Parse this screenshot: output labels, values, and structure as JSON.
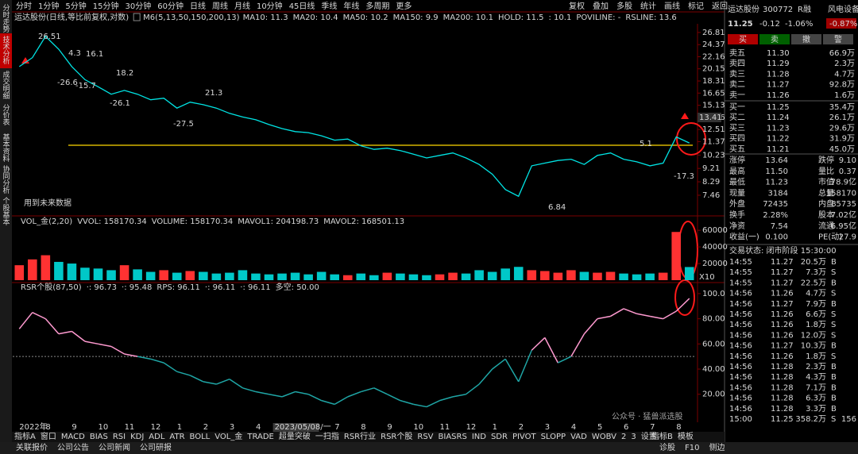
{
  "side_tabs": [
    "分时走势",
    "技术分析",
    "成交明细",
    "分价表",
    "基本资料",
    "协同分析",
    "个股基本"
  ],
  "toolbar": {
    "periods": [
      "分时",
      "1分钟",
      "5分钟",
      "15分钟",
      "30分钟",
      "60分钟",
      "日线",
      "周线",
      "月线",
      "10分钟",
      "45日线",
      "季线",
      "年线",
      "多周期",
      "更多"
    ],
    "tools": [
      "复权",
      "叠加",
      "多股",
      "统计",
      "画线",
      "标记",
      "返回"
    ]
  },
  "header": {
    "name": "运达股份(日线,等比前复权,对数)",
    "indicator": "M6(5,13,50,150,200,13)",
    "items": [
      {
        "label": "MA10: 11.3",
        "color": "#ffffff"
      },
      {
        "label": "MA20: 10.4",
        "color": "#ffd800"
      },
      {
        "label": "MA50: 10.2",
        "color": "#ff40ff"
      },
      {
        "label": "MA150: 9.9",
        "color": "#00d000"
      },
      {
        "label": "MA200: 10.1",
        "color": "#a0a0a0"
      },
      {
        "label": "HOLD: 11.5",
        "color": "#00e000"
      },
      {
        "label": ": 10.1",
        "color": "#ffd800"
      },
      {
        "label": "POVILINE: -",
        "color": "#ffd800"
      },
      {
        "label": "RSLINE: 13.6",
        "color": "#00c0c0"
      }
    ]
  },
  "price_chart": {
    "type": "line",
    "log_scale": true,
    "ylim": [
      6.75,
      28.7
    ],
    "yticks": [
      26.81,
      24.37,
      22.16,
      20.15,
      18.31,
      16.65,
      15.13,
      13.76,
      12.51,
      11.37,
      10.23,
      9.21,
      8.29,
      7.46
    ],
    "series": [
      {
        "color": "#00e4e4",
        "values": [
          20.5,
          22.0,
          26.0,
          23.5,
          20.5,
          18.5,
          17.5,
          16.5,
          17.0,
          16.5,
          15.8,
          16.0,
          14.8,
          15.5,
          15.2,
          14.8,
          14.2,
          13.8,
          13.5,
          13.0,
          12.6,
          12.3,
          12.2,
          11.9,
          11.5,
          11.6,
          11.0,
          10.7,
          10.8,
          10.6,
          10.3,
          10.0,
          10.2,
          10.4,
          10.0,
          9.5,
          8.8,
          7.8,
          7.4,
          9.4,
          9.6,
          9.8,
          9.9,
          9.5,
          10.2,
          10.4,
          9.9,
          9.7,
          9.4,
          9.6,
          11.8,
          11.25
        ]
      }
    ],
    "annotations": [
      {
        "text": "26.51",
        "color": "#ffffff"
      },
      {
        "text": "4.3",
        "color": "#ffffff"
      },
      {
        "text": "16.1",
        "color": "#ffffff"
      },
      {
        "text": "18.2",
        "color": "#ffffff"
      },
      {
        "text": "-26.6",
        "color": "#00d000"
      },
      {
        "text": "-15.7",
        "color": "#00d000"
      },
      {
        "text": "-26.1",
        "color": "#00d000"
      },
      {
        "text": "21.3",
        "color": "#ffffff"
      },
      {
        "text": "-27.5",
        "color": "#00d000"
      },
      {
        "text": "6.84",
        "color": "#ffffff"
      },
      {
        "text": "13.41",
        "color": "#ffffff"
      },
      {
        "text": "5.1",
        "color": "#ffffff"
      },
      {
        "text": "-17.3",
        "color": "#00d000"
      },
      {
        "text": "用到未来数据",
        "color": "#707070"
      }
    ]
  },
  "volume_chart": {
    "type": "bar",
    "header": [
      {
        "label": "VOL_金(2,20)",
        "color": "#d8d8d8"
      },
      {
        "label": "VVOL: 158170.34",
        "color": "#d8d8d8"
      },
      {
        "label": "VOLUME: 158170.34",
        "color": "#ffd800"
      },
      {
        "label": "MAVOL1: 204198.73",
        "color": "#ffd800"
      },
      {
        "label": "MAVOL2: 168501.13",
        "color": "#ff40ff"
      }
    ],
    "ylim": [
      0,
      63000
    ],
    "yticks": [
      20000,
      40000,
      60000
    ],
    "unit_label": "X10",
    "up_color": "#ff3232",
    "down_color": "#00c8c8",
    "values": [
      18000,
      25000,
      30000,
      22000,
      20000,
      15000,
      14000,
      12000,
      18000,
      13000,
      10000,
      12000,
      9000,
      11000,
      10000,
      8000,
      9000,
      12000,
      8000,
      7000,
      8000,
      9000,
      7000,
      10000,
      7000,
      6000,
      8000,
      6000,
      9000,
      8000,
      7000,
      6000,
      7000,
      9000,
      8000,
      12000,
      10000,
      14000,
      16000,
      12000,
      11000,
      9000,
      12000,
      10000,
      9000,
      10000,
      8000,
      7000,
      8000,
      9000,
      58000,
      15817
    ]
  },
  "rsr_chart": {
    "type": "line",
    "header": [
      {
        "label": "RSR个股(87,50)",
        "color": "#d8d8d8"
      },
      {
        "label": "·: 96.73",
        "color": "#ff3232"
      },
      {
        "label": "·: 95.48",
        "color": "#ff3232"
      },
      {
        "label": "RPS: 96.11",
        "color": "#00c0c0"
      },
      {
        "label": "·: 96.11",
        "color": "#ffffff"
      },
      {
        "label": "·: 96.11",
        "color": "#ff3232"
      },
      {
        "label": "多空: 50.00",
        "color": "#a0a0a0"
      }
    ],
    "ylim": [
      -1,
      105
    ],
    "yticks": [
      {
        "value": 100,
        "label": "100.0"
      },
      {
        "value": 80,
        "label": "80.00"
      },
      {
        "value": 60,
        "label": "60.00"
      },
      {
        "value": 40,
        "label": "40.00"
      },
      {
        "value": 20,
        "label": "20.00"
      }
    ],
    "threshold": 50,
    "above_color": "#ff9ad0",
    "below_color": "#1fa6a6",
    "values": [
      72,
      85,
      80,
      68,
      70,
      62,
      60,
      58,
      52,
      50,
      48,
      45,
      38,
      35,
      30,
      28,
      32,
      25,
      22,
      20,
      18,
      22,
      20,
      15,
      12,
      18,
      22,
      25,
      20,
      15,
      12,
      10,
      15,
      18,
      20,
      28,
      40,
      48,
      30,
      55,
      65,
      45,
      50,
      68,
      80,
      82,
      88,
      84,
      82,
      80,
      86,
      96.11
    ]
  },
  "xticks": [
    {
      "value": 0,
      "label": "2022年"
    },
    {
      "value": 2,
      "label": "8"
    },
    {
      "value": 4,
      "label": "9"
    },
    {
      "value": 6,
      "label": "10"
    },
    {
      "value": 8,
      "label": "11"
    },
    {
      "value": 10,
      "label": "12"
    },
    {
      "value": 12,
      "label": "1"
    },
    {
      "value": 14,
      "label": "2"
    },
    {
      "value": 16,
      "label": "3"
    },
    {
      "value": 18,
      "label": "4"
    },
    {
      "value": 21,
      "label": "2023/05/08/一"
    },
    {
      "value": 24,
      "label": "7"
    },
    {
      "value": 26,
      "label": "8"
    },
    {
      "value": 28,
      "label": "9"
    },
    {
      "value": 30,
      "label": "10"
    },
    {
      "value": 32,
      "label": "11"
    },
    {
      "value": 34,
      "label": "12"
    },
    {
      "value": 36,
      "label": "1"
    },
    {
      "value": 38,
      "label": "2"
    },
    {
      "value": 40,
      "label": "3"
    },
    {
      "value": 42,
      "label": "4"
    },
    {
      "value": 44,
      "label": "5"
    },
    {
      "value": 46,
      "label": "6"
    },
    {
      "value": 48,
      "label": "7"
    },
    {
      "value": 50,
      "label": "8"
    }
  ],
  "bottom_tabs": [
    "指标A",
    "窗口",
    "MACD",
    "BIAS",
    "RSI",
    "KDJ",
    "ADL",
    "ATR",
    "BOLL",
    "VOL_金",
    "TRADE",
    "超量突破",
    "一扫指",
    "RSR行业",
    "RSR个股",
    "RSV",
    "BIASRS",
    "IND",
    "SDR",
    "PIVOT",
    "SLOPP",
    "VAD",
    "WOBV",
    "2",
    "3",
    "设置"
  ],
  "bottom_right_tabs": [
    "指标B",
    "模板"
  ],
  "status_bar": {
    "left": [
      "关联报价",
      "公司公告",
      "公司新闻",
      "公司研报"
    ],
    "right": [
      "诊股",
      "F10",
      "侧边"
    ]
  },
  "watermark": "公众号 · 猛兽派选股",
  "quote": {
    "name": "运达股份",
    "code": "300772",
    "badge": "R融",
    "sector": "风电设备",
    "price": "11.25",
    "change": "-0.12",
    "pct": "-1.06%",
    "sector_pct": "-0.87%",
    "buttons": [
      "买",
      "卖",
      "撤",
      "警"
    ],
    "asks": [
      {
        "label": "卖五",
        "price": "11.30",
        "vol": "66.9万"
      },
      {
        "label": "卖四",
        "price": "11.29",
        "vol": "2.3万"
      },
      {
        "label": "卖三",
        "price": "11.28",
        "vol": "4.7万"
      },
      {
        "label": "卖二",
        "price": "11.27",
        "vol": "92.8万"
      },
      {
        "label": "卖一",
        "price": "11.26",
        "vol": "1.6万"
      }
    ],
    "bids": [
      {
        "label": "买一",
        "price": "11.25",
        "vol": "35.4万"
      },
      {
        "label": "买二",
        "price": "11.24",
        "vol": "26.1万"
      },
      {
        "label": "买三",
        "price": "11.23",
        "vol": "29.6万"
      },
      {
        "label": "买四",
        "price": "11.22",
        "vol": "31.9万"
      },
      {
        "label": "买五",
        "price": "11.21",
        "vol": "45.0万"
      }
    ],
    "stats": [
      [
        {
          "label": "涨停",
          "value": "13.64",
          "color": "#ff3232"
        },
        {
          "label": "跌停",
          "value": "9.10",
          "color": "#00d000"
        }
      ],
      [
        {
          "label": "最高",
          "value": "11.50",
          "color": "#ff3232"
        },
        {
          "label": "量比",
          "value": "0.37",
          "color": "#ffd800"
        }
      ],
      [
        {
          "label": "最低",
          "value": "11.23",
          "color": "#00d000"
        },
        {
          "label": "市值",
          "value": "78.9亿",
          "color": "#d8d8d8"
        }
      ],
      [
        {
          "label": "现量",
          "value": "3184",
          "color": "#ffd800"
        },
        {
          "label": "总量",
          "value": "158170",
          "color": "#d8d8d8"
        }
      ],
      [
        {
          "label": "外盘",
          "value": "72435",
          "color": "#ff3232"
        },
        {
          "label": "内盘",
          "value": "85735",
          "color": "#00d000"
        }
      ],
      [
        {
          "label": "换手",
          "value": "2.28%",
          "color": "#d8d8d8"
        },
        {
          "label": "股本",
          "value": "7.02亿",
          "color": "#d8d8d8"
        }
      ],
      [
        {
          "label": "净资",
          "value": "7.54",
          "color": "#d8d8d8"
        },
        {
          "label": "流通",
          "value": "6.95亿",
          "color": "#d8d8d8"
        }
      ],
      [
        {
          "label": "收益(一)",
          "value": "0.100",
          "color": "#d8d8d8"
        },
        {
          "label": "PE(动)",
          "value": "27.9",
          "color": "#d8d8d8"
        }
      ]
    ],
    "trade_status": "交易状态: 闭市阶段 15:30:00",
    "trades": [
      {
        "time": "14:55",
        "price": "11.27",
        "vol": "20.5万",
        "side": "B"
      },
      {
        "time": "14:55",
        "price": "11.27",
        "vol": "7.3万",
        "side": "S"
      },
      {
        "time": "14:55",
        "price": "11.27",
        "vol": "22.5万",
        "side": "B"
      },
      {
        "time": "14:56",
        "price": "11.26",
        "vol": "4.7万",
        "side": "S"
      },
      {
        "time": "14:56",
        "price": "11.27",
        "vol": "7.9万",
        "side": "B"
      },
      {
        "time": "14:56",
        "price": "11.26",
        "vol": "6.6万",
        "side": "S"
      },
      {
        "time": "14:56",
        "price": "11.26",
        "vol": "1.8万",
        "side": "S"
      },
      {
        "time": "14:56",
        "price": "11.26",
        "vol": "12.0万",
        "side": "S"
      },
      {
        "time": "14:56",
        "price": "11.27",
        "vol": "10.3万",
        "side": "B"
      },
      {
        "time": "14:56",
        "price": "11.26",
        "vol": "1.8万",
        "side": "S"
      },
      {
        "time": "14:56",
        "price": "11.28",
        "vol": "2.3万",
        "side": "B"
      },
      {
        "time": "14:56",
        "price": "11.28",
        "vol": "4.3万",
        "side": "B"
      },
      {
        "time": "14:56",
        "price": "11.28",
        "vol": "7.1万",
        "side": "B"
      },
      {
        "time": "14:56",
        "price": "11.28",
        "vol": "6.3万",
        "side": "B"
      },
      {
        "time": "14:56",
        "price": "11.28",
        "vol": "3.3万",
        "side": "B"
      },
      {
        "time": "15:00",
        "price": "11.25",
        "vol": "358.2万",
        "side": "S",
        "count": "156"
      }
    ]
  }
}
